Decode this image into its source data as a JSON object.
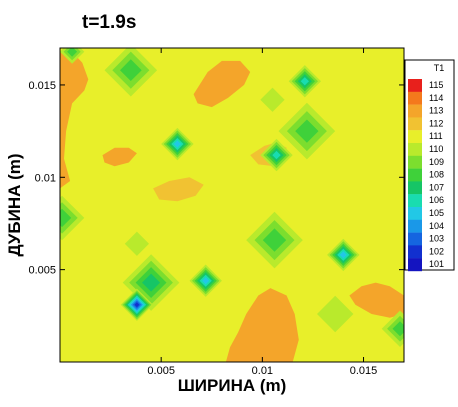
{
  "chart_data": {
    "type": "heatmap",
    "subtype": "filled-contour",
    "title": "t=1.9s",
    "xlabel": "ШИРИНА (m)",
    "ylabel": "ДУБИНА (m)",
    "xlim": [
      0,
      0.017
    ],
    "ylim": [
      0,
      0.017
    ],
    "x_ticks": [
      0.005,
      0.01,
      0.015
    ],
    "x_tick_labels": [
      "0.005",
      "0.01",
      "0.015"
    ],
    "y_ticks": [
      0.005,
      0.01,
      0.015
    ],
    "y_tick_labels": [
      "0.005",
      "0.01",
      "0.015"
    ],
    "grid": false,
    "background_value": 111.5,
    "colorbar": {
      "title": "T1",
      "placement": "right",
      "levels": [
        115,
        114,
        113,
        112,
        111,
        110,
        109,
        108,
        107,
        106,
        105,
        104,
        103,
        102,
        101
      ],
      "colors": [
        "#e8201c",
        "#f4791c",
        "#f4a52a",
        "#f1c232",
        "#e8ef2a",
        "#b9ea2c",
        "#7cde2e",
        "#3fd13a",
        "#16c566",
        "#19dcb0",
        "#22c8e6",
        "#1a98e8",
        "#1565e0",
        "#1230cf",
        "#1414c0"
      ]
    },
    "warm_regions": [
      {
        "value": 113,
        "polygon": [
          [
            0,
            0.0168
          ],
          [
            0.0006,
            0.0168
          ],
          [
            0.0011,
            0.0162
          ],
          [
            0.0014,
            0.0153
          ],
          [
            0.0012,
            0.0147
          ],
          [
            0.0006,
            0.014
          ],
          [
            0.0003,
            0.0125
          ],
          [
            0.0002,
            0.011
          ],
          [
            0.0005,
            0.0098
          ],
          [
            0,
            0.0094
          ]
        ]
      },
      {
        "value": 113,
        "polygon": [
          [
            0.0066,
            0.0145
          ],
          [
            0.0073,
            0.0157
          ],
          [
            0.008,
            0.0163
          ],
          [
            0.0089,
            0.0163
          ],
          [
            0.0094,
            0.0157
          ],
          [
            0.0091,
            0.015
          ],
          [
            0.0083,
            0.0143
          ],
          [
            0.0075,
            0.0138
          ],
          [
            0.0068,
            0.014
          ]
        ]
      },
      {
        "value": 113,
        "polygon": [
          [
            0.0082,
            0
          ],
          [
            0.0084,
            0.0008
          ],
          [
            0.0088,
            0.0016
          ],
          [
            0.0092,
            0.0026
          ],
          [
            0.0098,
            0.0036
          ],
          [
            0.0104,
            0.004
          ],
          [
            0.0112,
            0.0036
          ],
          [
            0.0116,
            0.0026
          ],
          [
            0.0118,
            0.0012
          ],
          [
            0.0115,
            0
          ]
        ]
      },
      {
        "value": 113,
        "polygon": [
          [
            0.0021,
            0.0112
          ],
          [
            0.0027,
            0.0116
          ],
          [
            0.0034,
            0.0116
          ],
          [
            0.0038,
            0.0113
          ],
          [
            0.0034,
            0.0108
          ],
          [
            0.0027,
            0.0106
          ],
          [
            0.0022,
            0.0108
          ]
        ]
      },
      {
        "value": 112,
        "polygon": [
          [
            0.0094,
            0.0112
          ],
          [
            0.0101,
            0.0117
          ],
          [
            0.0107,
            0.0119
          ],
          [
            0.0112,
            0.0116
          ],
          [
            0.0112,
            0.011
          ],
          [
            0.0106,
            0.0106
          ],
          [
            0.0098,
            0.0107
          ]
        ]
      },
      {
        "value": 112,
        "polygon": [
          [
            0.0046,
            0.0094
          ],
          [
            0.0054,
            0.0098
          ],
          [
            0.0064,
            0.01
          ],
          [
            0.0071,
            0.0096
          ],
          [
            0.0067,
            0.009
          ],
          [
            0.0058,
            0.0087
          ],
          [
            0.0049,
            0.0088
          ]
        ]
      },
      {
        "value": 113,
        "polygon": [
          [
            0.0143,
            0.0036
          ],
          [
            0.0149,
            0.0041
          ],
          [
            0.0156,
            0.0043
          ],
          [
            0.0163,
            0.0041
          ],
          [
            0.017,
            0.0036
          ],
          [
            0.017,
            0.0026
          ],
          [
            0.0163,
            0.0024
          ],
          [
            0.0154,
            0.0026
          ],
          [
            0.0146,
            0.0031
          ]
        ]
      }
    ],
    "cool_spots": [
      {
        "x": 0.0035,
        "y": 0.0158,
        "r": 0.0013,
        "min": 108
      },
      {
        "x": 0.0121,
        "y": 0.0152,
        "r": 0.0008,
        "min": 106
      },
      {
        "x": 0.0058,
        "y": 0.0118,
        "r": 0.0008,
        "min": 105
      },
      {
        "x": 0.0122,
        "y": 0.0125,
        "r": 0.0014,
        "min": 108
      },
      {
        "x": 0.0107,
        "y": 0.0112,
        "r": 0.0008,
        "min": 106
      },
      {
        "x": 0.0001,
        "y": 0.0078,
        "r": 0.0011,
        "min": 108
      },
      {
        "x": 0.0106,
        "y": 0.0066,
        "r": 0.0014,
        "min": 108
      },
      {
        "x": 0.014,
        "y": 0.0058,
        "r": 0.0008,
        "min": 105
      },
      {
        "x": 0.0072,
        "y": 0.0044,
        "r": 0.0008,
        "min": 105
      },
      {
        "x": 0.0045,
        "y": 0.0043,
        "r": 0.0014,
        "min": 107
      },
      {
        "x": 0.0038,
        "y": 0.0031,
        "r": 0.0008,
        "min": 102
      },
      {
        "x": 0.0168,
        "y": 0.0018,
        "r": 0.0009,
        "min": 108
      },
      {
        "x": 0.0006,
        "y": 0.0168,
        "r": 0.0006,
        "min": 108
      },
      {
        "x": 0.0136,
        "y": 0.0026,
        "r": 0.0009,
        "min": 110
      },
      {
        "x": 0.0038,
        "y": 0.0064,
        "r": 0.0006,
        "min": 110
      },
      {
        "x": 0.0105,
        "y": 0.0142,
        "r": 0.0006,
        "min": 110
      }
    ]
  }
}
